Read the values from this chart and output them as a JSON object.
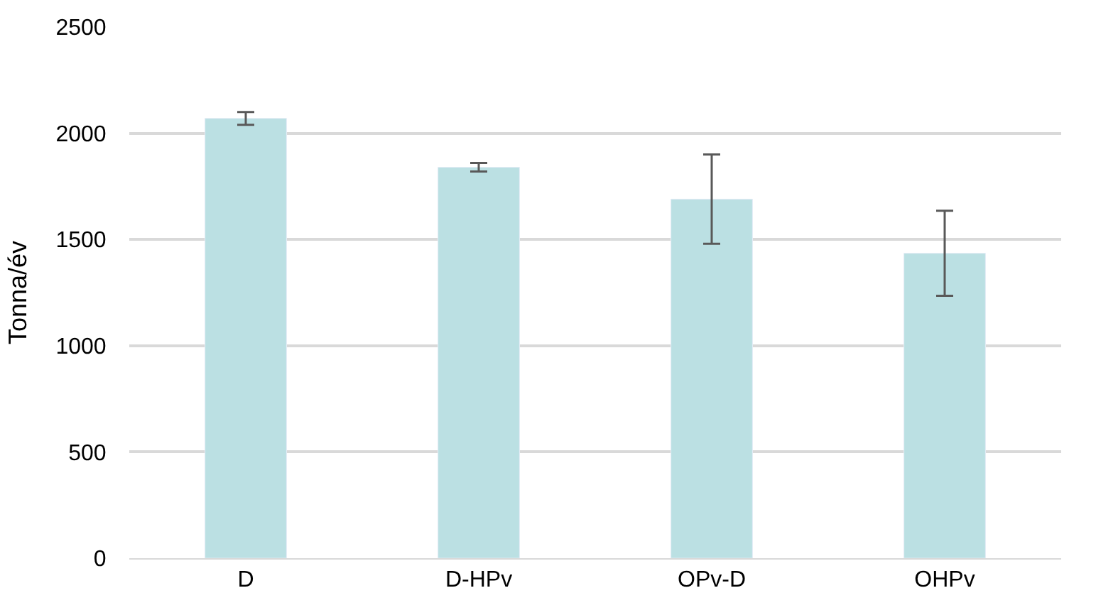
{
  "chart_data": {
    "type": "bar",
    "ylabel": "Tonna/év",
    "categories": [
      "D",
      "D-HPv",
      "OPv-D",
      "OHPv"
    ],
    "values": [
      2070,
      1840,
      1690,
      1435
    ],
    "errors": [
      30,
      20,
      210,
      200
    ],
    "color": "#bbe0e3",
    "ylim": [
      0,
      2500
    ],
    "yticks": [
      0,
      500,
      1000,
      1500,
      2000,
      2500
    ],
    "grid": "y"
  }
}
